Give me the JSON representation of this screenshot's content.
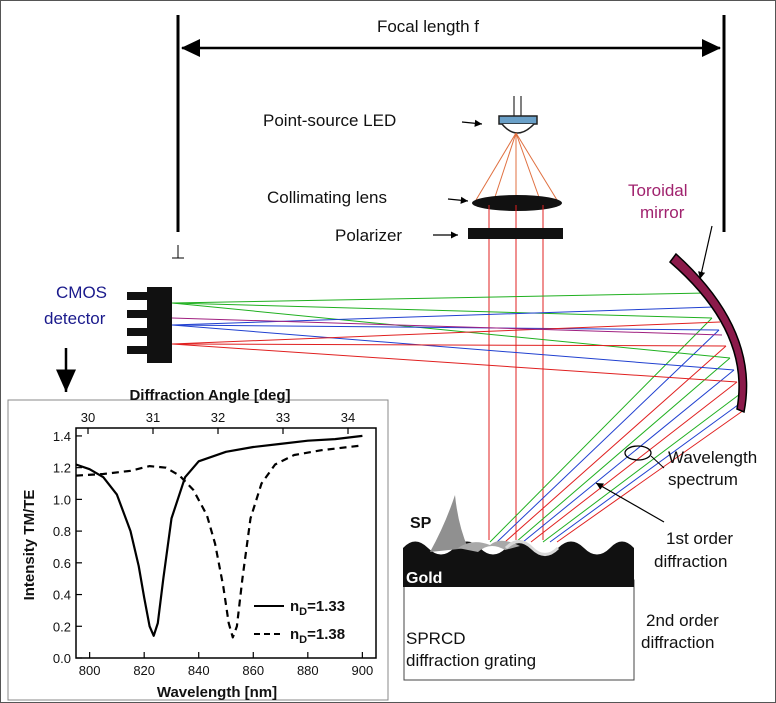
{
  "labels": {
    "focal_length": "Focal length f",
    "led": "Point-source LED",
    "lens": "Collimating lens",
    "polarizer": "Polarizer",
    "mirror_line1": "Toroidal",
    "mirror_line2": "mirror",
    "cmos_line1": "CMOS",
    "cmos_line2": "detector",
    "wavelength_line1": "Wavelength",
    "wavelength_line2": "spectrum",
    "first_order_line1": "1st order",
    "first_order_line2": "diffraction",
    "second_order_line1": "2nd order",
    "second_order_line2": "diffraction",
    "sp": "SP",
    "gold": "Gold",
    "grating_line1": "SPRCD",
    "grating_line2": "diffraction grating"
  },
  "colors": {
    "mirror": "#8b1a4a",
    "mirror_label": "#a0226e",
    "cmos_label": "#1a1a8c",
    "ray_red": "#e02020",
    "ray_green": "#20b020",
    "ray_blue": "#2040d0",
    "ray_led": "#e07040"
  },
  "chart_data": {
    "type": "line",
    "title": "",
    "xlabel": "Wavelength [nm]",
    "x2label": "Diffraction Angle [deg]",
    "ylabel": "Intensity TM/TE",
    "xlim": [
      795,
      905
    ],
    "x2ticks": [
      "30",
      "31",
      "32",
      "33",
      "34"
    ],
    "ylim": [
      0.0,
      1.45
    ],
    "xticks": [
      "800",
      "820",
      "840",
      "860",
      "880",
      "900"
    ],
    "yticks": [
      "0.0",
      "0.2",
      "0.4",
      "0.6",
      "0.8",
      "1.0",
      "1.2",
      "1.4"
    ],
    "legend_position": "bottom-right",
    "series": [
      {
        "name": "n_D=1.33",
        "legend_main": "n",
        "legend_sub": "D",
        "legend_rest": "=1.33",
        "style": "solid",
        "x": [
          795,
          800,
          805,
          810,
          815,
          818,
          820,
          822,
          823.5,
          825,
          827,
          830,
          835,
          840,
          850,
          860,
          870,
          880,
          890,
          900
        ],
        "y": [
          1.22,
          1.19,
          1.14,
          1.03,
          0.8,
          0.58,
          0.38,
          0.2,
          0.14,
          0.22,
          0.5,
          0.88,
          1.14,
          1.24,
          1.3,
          1.33,
          1.35,
          1.37,
          1.38,
          1.4
        ]
      },
      {
        "name": "n_D=1.38",
        "legend_main": "n",
        "legend_sub": "D",
        "legend_rest": "=1.38",
        "style": "dashed",
        "x": [
          795,
          805,
          815,
          822,
          828,
          833,
          838,
          843,
          846,
          849,
          851,
          852.5,
          854,
          856,
          859,
          863,
          868,
          875,
          885,
          900
        ],
        "y": [
          1.15,
          1.16,
          1.18,
          1.21,
          1.2,
          1.15,
          1.06,
          0.9,
          0.72,
          0.45,
          0.22,
          0.13,
          0.2,
          0.5,
          0.88,
          1.1,
          1.22,
          1.28,
          1.31,
          1.34
        ]
      }
    ]
  }
}
